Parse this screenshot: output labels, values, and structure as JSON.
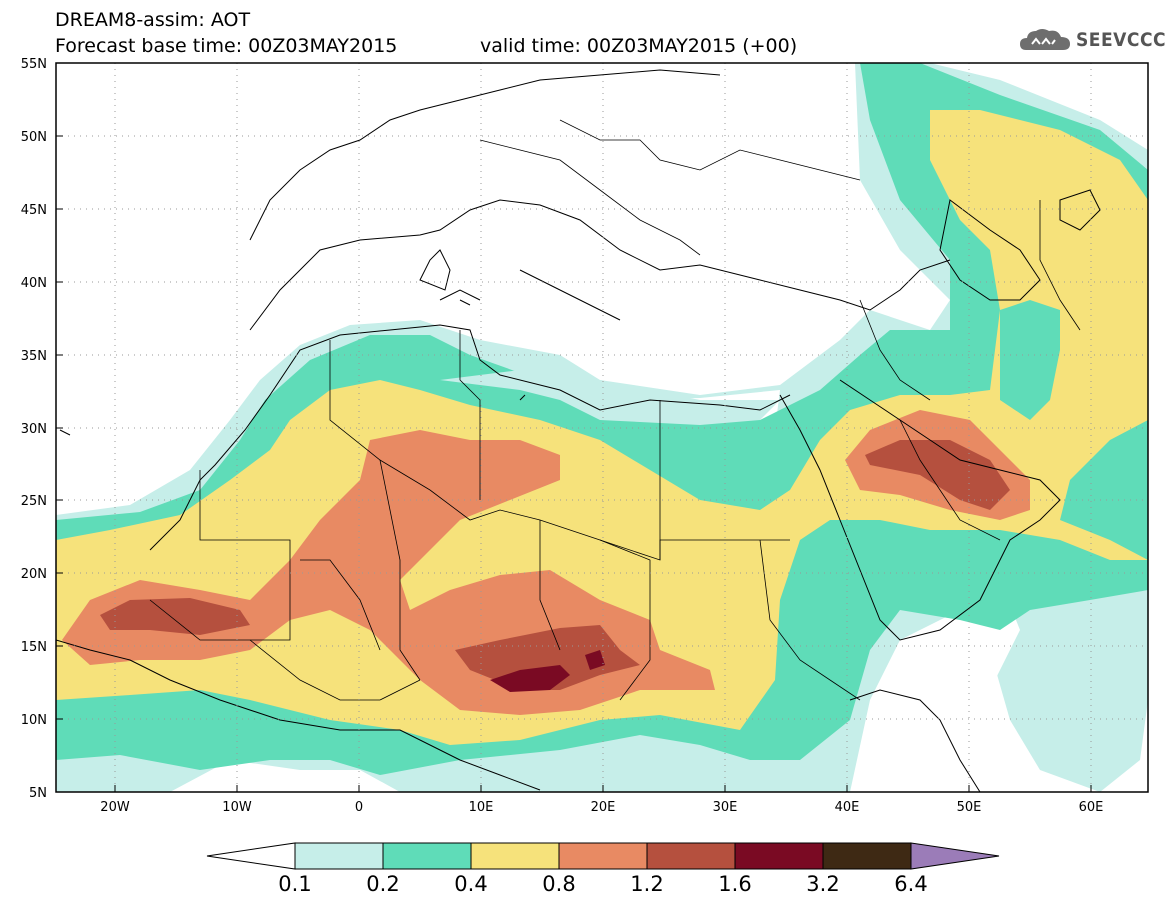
{
  "header": {
    "title_line1": "DREAM8-assim: AOT",
    "title_line2": "Forecast base time: 00Z03MAY2015",
    "valid_time": "valid time: 00Z03MAY2015 (+00)"
  },
  "logo": {
    "text": "SEEVCCC",
    "icon": "cloud-logo-icon"
  },
  "axes": {
    "lat_labels": [
      "55N",
      "50N",
      "45N",
      "40N",
      "35N",
      "30N",
      "25N",
      "20N",
      "15N",
      "10N",
      "5N"
    ],
    "lon_labels": [
      "20W",
      "10W",
      "0",
      "10E",
      "20E",
      "30E",
      "40E",
      "50E",
      "60E"
    ]
  },
  "colorbar": {
    "labels": [
      "0.1",
      "0.2",
      "0.4",
      "0.8",
      "1.2",
      "1.6",
      "3.2",
      "6.4"
    ],
    "colors": [
      "#ffffff",
      "#c6eee9",
      "#5fdcb8",
      "#f6e27b",
      "#e88a63",
      "#b5503e",
      "#7a0a23",
      "#3e2914",
      "#9b7cb8"
    ]
  },
  "chart_data": {
    "type": "heatmap",
    "title": "DREAM8-assim: AOT",
    "variable": "Aerosol optical thickness",
    "lon_range": [
      -25,
      65
    ],
    "lat_range": [
      5,
      55
    ],
    "levels": [
      0.1,
      0.2,
      0.4,
      0.8,
      1.2,
      1.6,
      3.2,
      6.4
    ],
    "grid": "dotted"
  }
}
